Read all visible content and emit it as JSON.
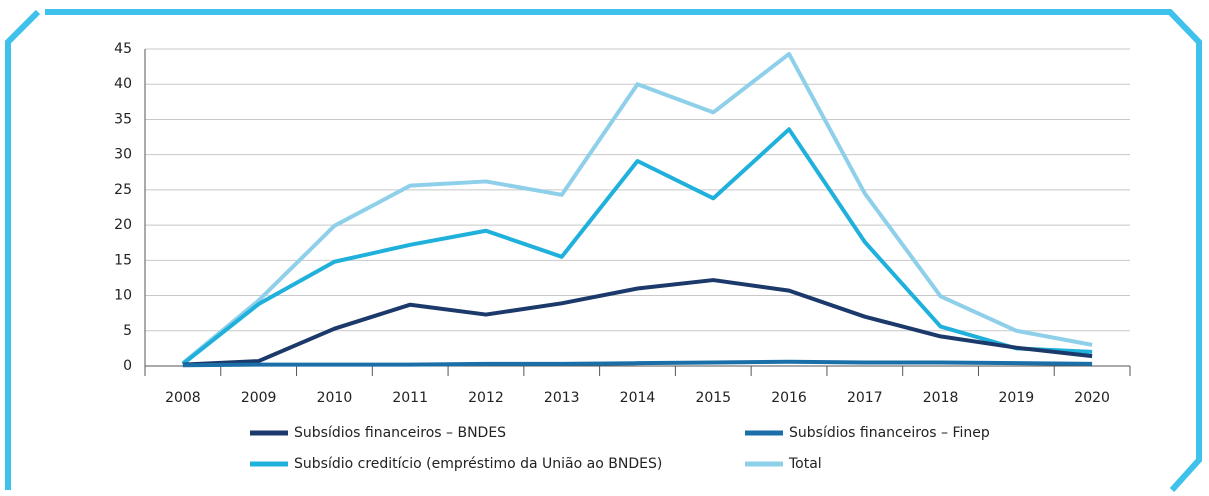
{
  "chart_data": {
    "type": "line",
    "categories": [
      "2008",
      "2009",
      "2010",
      "2011",
      "2012",
      "2013",
      "2014",
      "2015",
      "2016",
      "2017",
      "2018",
      "2019",
      "2020"
    ],
    "series": [
      {
        "name": "Subsídios financeiros – BNDES",
        "color": "#1b3a6b",
        "values": [
          0.2,
          0.7,
          5.3,
          8.7,
          7.3,
          8.9,
          11.0,
          12.2,
          10.7,
          7.0,
          4.2,
          2.6,
          1.4
        ]
      },
      {
        "name": "Subsídios financeiros – Finep",
        "color": "#1a6fa8",
        "values": [
          0.1,
          0.2,
          0.2,
          0.2,
          0.3,
          0.3,
          0.4,
          0.5,
          0.6,
          0.5,
          0.5,
          0.4,
          0.3
        ]
      },
      {
        "name": "Subsídio creditício (empréstimo da União ao BNDES)",
        "color": "#1fb0dc",
        "values": [
          0.3,
          8.8,
          14.8,
          17.2,
          19.2,
          15.5,
          29.1,
          23.8,
          33.6,
          17.6,
          5.6,
          2.5,
          2.0
        ]
      },
      {
        "name": "Total",
        "color": "#8ecfea",
        "values": [
          0.4,
          9.3,
          19.9,
          25.6,
          26.2,
          24.3,
          40.0,
          36.0,
          44.3,
          24.5,
          9.9,
          5.0,
          3.0
        ]
      }
    ],
    "ylim": [
      0,
      45
    ],
    "yticks": [
      0,
      5,
      10,
      15,
      20,
      25,
      30,
      35,
      40,
      45
    ],
    "grid": true
  }
}
